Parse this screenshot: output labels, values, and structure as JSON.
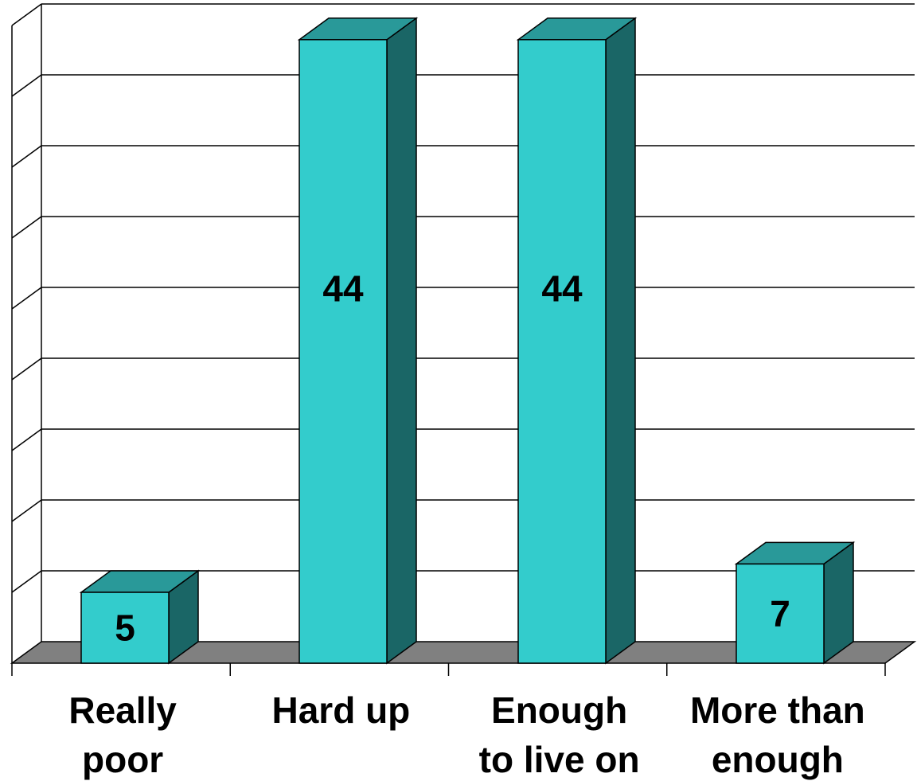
{
  "chart_data": {
    "type": "bar",
    "style": "3d",
    "title": "",
    "xlabel": "",
    "ylabel": "",
    "ylim": [
      0,
      45
    ],
    "y_gridline_step": 5,
    "show_y_tick_labels": false,
    "grid": true,
    "categories": [
      [
        "Really",
        "poor"
      ],
      [
        "Hard up"
      ],
      [
        "Enough",
        "to live on"
      ],
      [
        "More than",
        "enough"
      ]
    ],
    "values": [
      5,
      44,
      44,
      7
    ],
    "colors": {
      "bar_front": "#33CCCC",
      "bar_top": "#299999",
      "bar_side": "#1A6666",
      "floor": "#808080",
      "grid": "#000000",
      "background": "#FFFFFF"
    }
  }
}
